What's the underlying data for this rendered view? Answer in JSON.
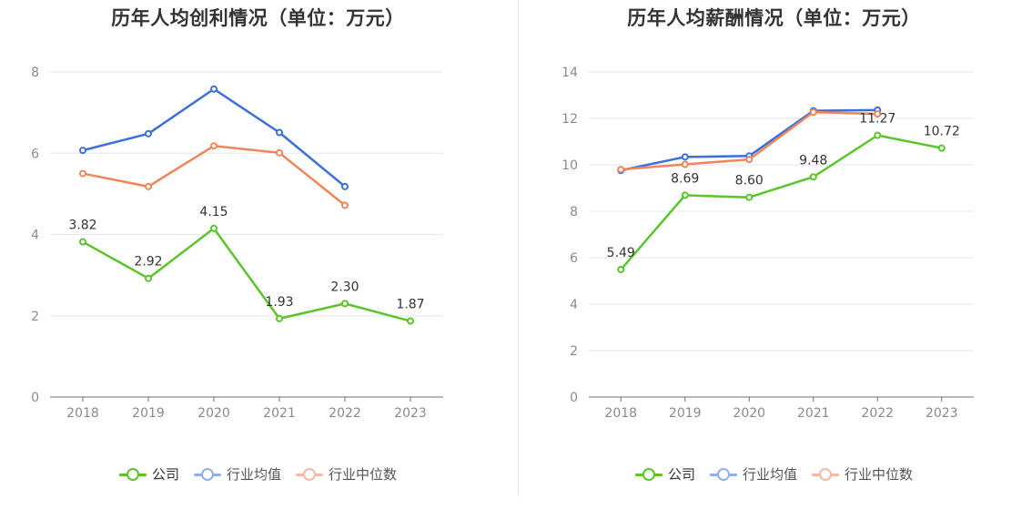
{
  "chart_data": [
    {
      "type": "line",
      "title": "历年人均创利情况（单位：万元）",
      "categories": [
        "2018",
        "2019",
        "2020",
        "2021",
        "2022",
        "2023"
      ],
      "ylim": [
        0,
        8
      ],
      "yticks": [
        0,
        2,
        4,
        6,
        8
      ],
      "grid": true,
      "legend_position": "bottom-center",
      "series": [
        {
          "name": "公司",
          "color": "#5ac42a",
          "values": [
            3.82,
            2.92,
            4.15,
            1.93,
            2.3,
            1.87
          ],
          "labels": [
            "3.82",
            "2.92",
            "4.15",
            "1.93",
            "2.30",
            "1.87"
          ]
        },
        {
          "name": "行业均值",
          "color": "#3c6fd9",
          "values": [
            6.07,
            6.48,
            7.58,
            6.51,
            5.18,
            null
          ]
        },
        {
          "name": "行业中位数",
          "color": "#f0855a",
          "values": [
            5.5,
            5.18,
            6.18,
            6.01,
            4.72,
            null
          ]
        }
      ]
    },
    {
      "type": "line",
      "title": "历年人均薪酬情况（单位：万元）",
      "categories": [
        "2018",
        "2019",
        "2020",
        "2021",
        "2022",
        "2023"
      ],
      "ylim": [
        0,
        14
      ],
      "yticks": [
        0,
        2,
        4,
        6,
        8,
        10,
        12,
        14
      ],
      "grid": true,
      "legend_position": "bottom-center",
      "series": [
        {
          "name": "公司",
          "color": "#5ac42a",
          "values": [
            5.49,
            8.69,
            8.6,
            9.48,
            11.27,
            10.72
          ],
          "labels": [
            "5.49",
            "8.69",
            "8.60",
            "9.48",
            "11.27",
            "10.72"
          ]
        },
        {
          "name": "行业均值",
          "color": "#3c6fd9",
          "values": [
            9.76,
            10.34,
            10.38,
            12.33,
            12.36,
            null
          ]
        },
        {
          "name": "行业中位数",
          "color": "#f0855a",
          "values": [
            9.8,
            10.02,
            10.23,
            12.27,
            12.19,
            null
          ]
        }
      ]
    }
  ],
  "legend": {
    "items": [
      {
        "label": "公司",
        "color": "#5ac42a",
        "active": true
      },
      {
        "label": "行业均值",
        "color": "#8fb0ee",
        "active": false
      },
      {
        "label": "行业中位数",
        "color": "#f7b8a0",
        "active": false
      }
    ]
  },
  "colors": {
    "grid": "#e3e6ef",
    "axis": "#6e7079",
    "tick_label": "#8a8a8a",
    "data_label": "#333333"
  }
}
